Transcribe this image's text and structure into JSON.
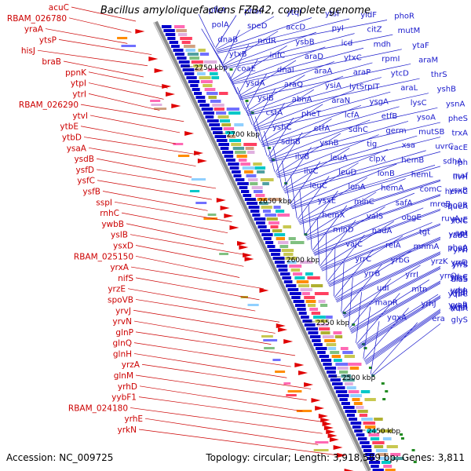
{
  "title": "Bacillus amyloliquefaciens FZB42, complete genome",
  "accession": "Accession: NC_009725",
  "summary": "Topology: circular; Length: 3,918,589 bp; Genes: 3,811",
  "colors": {
    "left_label": "#cc0000",
    "right_label": "#1a1acc",
    "backbone": "#8c8c8c",
    "reverse_arrow": "#e00000",
    "forward_arrow": "#0000cc"
  },
  "scale_ticks": [
    "2750 kbp",
    "2700 kbp",
    "2650 kbp",
    "2600 kbp",
    "2550 kbp",
    "2500 kbp",
    "2450 kbp"
  ],
  "left_genes": [
    "acuC",
    "RBAM_026780",
    "yraA",
    "ytsP",
    "hisJ",
    "braB",
    "ppnK",
    "ytpI",
    "ytrI",
    "RBAM_026290",
    "ytvI",
    "ytbE",
    "ytbD",
    "ysaA",
    "ysdB",
    "ysfD",
    "ysfC",
    "ysfB",
    "sspI",
    "rnhC",
    "ywbB",
    "ysIB",
    "ysxD",
    "RBAM_025150",
    "yrxA",
    "nifS",
    "yrzE",
    "spoVB",
    "yrvJ",
    "yrvN",
    "glnP",
    "glnQ",
    "glnH",
    "yrzA",
    "glnM",
    "yrhD",
    "yybF1",
    "RBAM_024180",
    "yrhE",
    "yrkN"
  ],
  "right_genes": [
    "pfkA",
    "phoP",
    "ytqI",
    "ytsI",
    "yidF",
    "phoR",
    "polA",
    "speD",
    "accD",
    "pyI",
    "citZ",
    "mutM",
    "dnaB",
    "nrdR",
    "ysbB",
    "icd",
    "mdh",
    "ytaF",
    "ytxB",
    "infC",
    "araD",
    "ytxC",
    "rpmI",
    "araM",
    "coaE",
    "dnaI",
    "araA",
    "araP",
    "ytcD",
    "thrS",
    "ysdA",
    "araQ",
    "ysiA",
    "IytSrpIT",
    "araL",
    "yshB",
    "ysiB",
    "abnA",
    "araN",
    "ysgA",
    "lysC",
    "ysnA",
    "cstA",
    "pheT",
    "lcfA",
    "etfB",
    "ysoA",
    "pheS",
    "yshC",
    "etfA",
    "sdhC",
    "germ",
    "mutSB",
    "trxA",
    "sdhB",
    "ysnB",
    "tig",
    "xsa",
    "uvrC",
    "racE",
    "ilvB",
    "leuA",
    "clpX",
    "hemB",
    "sdhA",
    "rph",
    "ilvC",
    "leuD",
    "lonB",
    "hemL",
    "maf",
    "ilvH",
    "leuC",
    "lonA",
    "hemA",
    "comC",
    "ysxB",
    "hemC",
    "ysxE",
    "minC",
    "safA",
    "mreB",
    "spo0B",
    "queA",
    "hemX",
    "valS",
    "obgE",
    "ruvA",
    "yrvE",
    "folC",
    "minD",
    "nadA",
    "tgt",
    "apt",
    "yrvM",
    "radC",
    "vajC",
    "relA",
    "mnmA",
    "pheA",
    "ruvB",
    "yrvI",
    "yrrC",
    "yrbG",
    "yrzK",
    "yrrD",
    "yrrL",
    "yrrS",
    "yrrB",
    "yrrI",
    "yrrO",
    "yrhC",
    "hisS",
    "alaS",
    "udI",
    "mtn",
    "yrhI",
    "yrhB",
    "yjdI",
    "yqaC",
    "manR",
    "yrhJ",
    "yyaR",
    "yrkR",
    "yqeI",
    "hoIA",
    "yqxA",
    "era",
    "glyS"
  ]
}
